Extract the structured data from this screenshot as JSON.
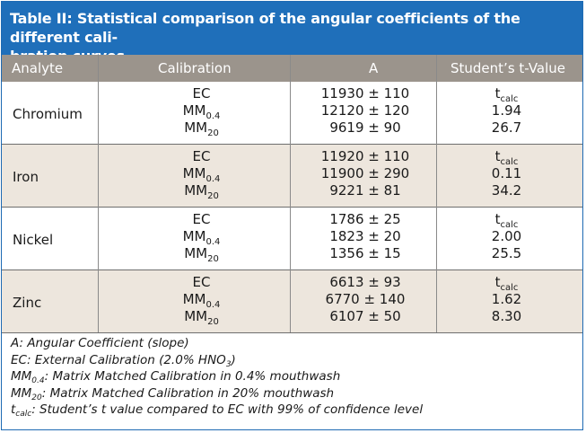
{
  "title": {
    "line1": "Table II: Statistical comparison of the angular coefficients of the different cali-",
    "line2": "bration curves"
  },
  "headers": {
    "analyte": "Analyte",
    "calibration": "Calibration",
    "a": "A",
    "t": "Student’s t-Value"
  },
  "calibration_labels": {
    "ec": "EC",
    "mm": "MM",
    "mm_sub_04": "0.4",
    "mm_sub_20": "20",
    "t": "t",
    "t_sub": "calc"
  },
  "rows": [
    {
      "analyte": "Chromium",
      "a": [
        "11930 ± 110",
        "12120 ± 120",
        "9619 ± 90"
      ],
      "t": [
        "1.94",
        "26.7"
      ]
    },
    {
      "analyte": "Iron",
      "a": [
        "11920 ± 110",
        "11900 ± 290",
        "9221 ± 81"
      ],
      "t": [
        "0.11",
        "34.2"
      ]
    },
    {
      "analyte": "Nickel",
      "a": [
        "1786 ± 25",
        "1823 ± 20",
        "1356 ± 15"
      ],
      "t": [
        "2.00",
        "25.5"
      ]
    },
    {
      "analyte": "Zinc",
      "a": [
        "6613 ± 93",
        "6770 ± 140",
        "6107 ± 50"
      ],
      "t": [
        "1.62",
        "8.30"
      ]
    }
  ],
  "footnotes": {
    "a": "A: Angular Coefficient (slope)",
    "ec_prefix": "EC: External Calibration (2.0% HNO",
    "ec_sub": "3",
    "ec_suffix": ")",
    "mm04_main": "MM",
    "mm04_sub": "0.4",
    "mm04_text": ": Matrix Matched Calibration in 0.4% mouthwash",
    "mm20_main": "MM",
    "mm20_sub": "20",
    "mm20_text": ": Matrix Matched Calibration in 20% mouthwash",
    "t_main": "t",
    "t_sub": "calc",
    "t_text": ": Student’s t value compared to EC with 99% of confidence level"
  },
  "colors": {
    "title_bg": "#1f6fba",
    "header_bg": "#9b948c",
    "alt_row_bg": "#ede6dd"
  }
}
